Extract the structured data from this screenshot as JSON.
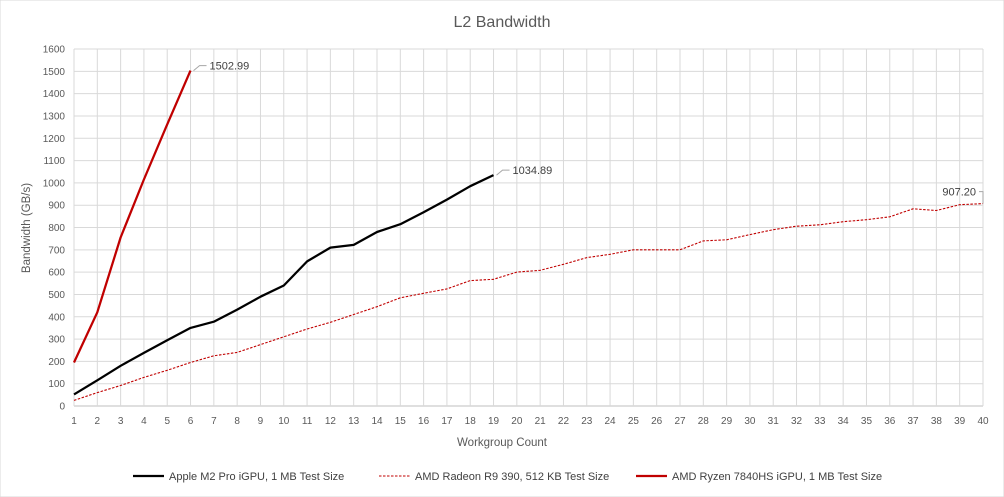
{
  "chart_data": {
    "type": "line",
    "title": "L2 Bandwidth",
    "xlabel": "Workgroup Count",
    "ylabel": "Bandwidth (GB/s)",
    "xlim": [
      1,
      40
    ],
    "ylim": [
      0,
      1600
    ],
    "ytick_step": 100,
    "grid": true,
    "legend_position": "bottom",
    "x_ticks": [
      1,
      2,
      3,
      4,
      5,
      6,
      7,
      8,
      9,
      10,
      11,
      12,
      13,
      14,
      15,
      16,
      17,
      18,
      19,
      20,
      21,
      22,
      23,
      24,
      25,
      26,
      27,
      28,
      29,
      30,
      31,
      32,
      33,
      34,
      35,
      36,
      37,
      38,
      39,
      40
    ],
    "y_ticks": [
      0,
      100,
      200,
      300,
      400,
      500,
      600,
      700,
      800,
      900,
      1000,
      1100,
      1200,
      1300,
      1400,
      1500,
      1600
    ],
    "series": [
      {
        "name": "Apple M2 Pro iGPU, 1 MB Test Size",
        "color": "#000000",
        "style": "solid",
        "x": [
          1,
          2,
          3,
          4,
          5,
          6,
          7,
          8,
          9,
          10,
          11,
          12,
          13,
          14,
          15,
          16,
          17,
          18,
          19
        ],
        "values": [
          52,
          115,
          180,
          238,
          295,
          350,
          378,
          432,
          490,
          540,
          648,
          710,
          722,
          780,
          815,
          868,
          925,
          985,
          1034.89
        ],
        "end_label": "1034.89"
      },
      {
        "name": "AMD Radeon R9 390, 512 KB Test Size",
        "color": "#c00000",
        "style": "dotted",
        "x": [
          1,
          2,
          3,
          4,
          5,
          6,
          7,
          8,
          9,
          10,
          11,
          12,
          13,
          14,
          15,
          16,
          17,
          18,
          19,
          20,
          21,
          22,
          23,
          24,
          25,
          26,
          27,
          28,
          29,
          30,
          31,
          32,
          33,
          34,
          35,
          36,
          37,
          38,
          39,
          40
        ],
        "values": [
          25,
          60,
          92,
          128,
          160,
          195,
          225,
          240,
          275,
          310,
          345,
          375,
          410,
          445,
          485,
          505,
          525,
          562,
          568,
          600,
          608,
          635,
          665,
          680,
          700,
          700,
          700,
          740,
          745,
          768,
          790,
          806,
          812,
          826,
          835,
          848,
          884,
          876,
          902,
          907.2
        ],
        "end_label": "907.20"
      },
      {
        "name": "AMD Ryzen 7840HS iGPU, 1 MB Test Size",
        "color": "#c00000",
        "style": "solid",
        "x": [
          1,
          2,
          3,
          4,
          5,
          6
        ],
        "values": [
          195,
          420,
          755,
          1015,
          1262,
          1502.99
        ],
        "end_label": "1502.99"
      }
    ]
  }
}
